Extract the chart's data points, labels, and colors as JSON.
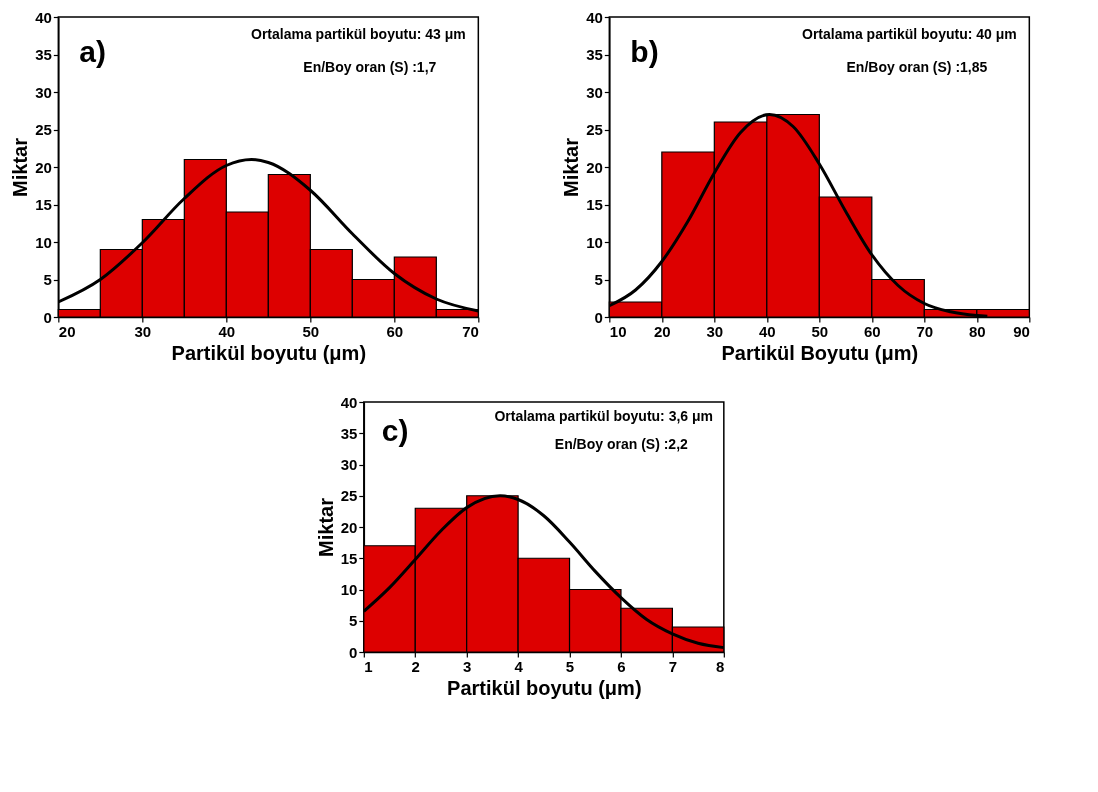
{
  "chart_data": [
    {
      "type": "histogram",
      "xlabel": "Partikül boyutu (μm)",
      "ylabel": "Miktar",
      "annotations": [
        "a)",
        "Ortalama partikül boyutu: 43 μm",
        "En/Boy oran (S) :1,7"
      ],
      "bins": [
        20,
        25,
        30,
        35,
        40,
        45,
        50,
        55,
        60,
        65,
        70
      ],
      "xlim": [
        20,
        70
      ],
      "xticks": [
        20,
        30,
        40,
        50,
        60,
        70
      ],
      "ylim": [
        0,
        40
      ],
      "yticks": [
        0,
        5,
        10,
        15,
        20,
        25,
        30,
        35,
        40
      ],
      "series": [
        {
          "type": "histogram",
          "color": "#dd0000",
          "values": [
            1,
            9,
            13,
            21,
            14,
            19,
            9,
            5,
            8,
            1
          ]
        },
        {
          "type": "line",
          "color": "#000000",
          "x": [
            20,
            25,
            30,
            35,
            40,
            43,
            45,
            50,
            55,
            60,
            65,
            70
          ],
          "values": [
            2.0,
            5.0,
            9.9,
            15.8,
            20.2,
            21,
            20.6,
            16.9,
            11.1,
            5.8,
            2.4,
            0.8
          ]
        }
      ]
    },
    {
      "type": "histogram",
      "xlabel": "Partikül Boyutu (μm)",
      "ylabel": "Miktar",
      "annotations": [
        "b)",
        "Ortalama partikül boyutu: 40 μm",
        "En/Boy oran (S) :1,85"
      ],
      "bins": [
        10,
        20,
        30,
        40,
        50,
        60,
        70,
        80,
        90
      ],
      "xlim": [
        10,
        90
      ],
      "xticks": [
        10,
        20,
        30,
        40,
        50,
        60,
        70,
        80,
        90
      ],
      "ylim": [
        0,
        40
      ],
      "yticks": [
        0,
        5,
        10,
        15,
        20,
        25,
        30,
        35,
        40
      ],
      "series": [
        {
          "type": "histogram",
          "color": "#dd0000",
          "values": [
            2,
            22,
            26,
            27,
            16,
            5,
            1,
            1
          ]
        },
        {
          "type": "line",
          "color": "#000000",
          "x": [
            10,
            15,
            20,
            25,
            30,
            35,
            40.5,
            45,
            50,
            55,
            60,
            65,
            70,
            75,
            80,
            82
          ],
          "values": [
            1.5,
            3.6,
            7.4,
            12.8,
            19.2,
            24.6,
            27,
            25.4,
            20.4,
            14.1,
            8.3,
            4.2,
            1.8,
            0.7,
            0.2,
            0.1
          ]
        }
      ]
    },
    {
      "type": "histogram",
      "xlabel": "Partikül boyutu (μm)",
      "ylabel": "Miktar",
      "annotations": [
        "c)",
        "Ortalama partikül boyutu: 3,6 μm",
        "En/Boy oran (S) :2,2"
      ],
      "bins": [
        1,
        2,
        3,
        4,
        5,
        6,
        7,
        8
      ],
      "xlim": [
        1,
        8
      ],
      "xticks": [
        1,
        2,
        3,
        4,
        5,
        6,
        7,
        8
      ],
      "ylim": [
        0,
        40
      ],
      "yticks": [
        0,
        5,
        10,
        15,
        20,
        25,
        30,
        35,
        40
      ],
      "series": [
        {
          "type": "histogram",
          "color": "#dd0000",
          "values": [
            17,
            23,
            25,
            15,
            10,
            7,
            4
          ]
        },
        {
          "type": "line",
          "color": "#000000",
          "x": [
            1,
            1.5,
            2,
            2.5,
            3,
            3.65,
            4,
            4.5,
            5,
            5.5,
            6,
            6.5,
            7,
            7.5,
            8
          ],
          "values": [
            6.5,
            10.3,
            14.8,
            19.4,
            23.1,
            25,
            24.4,
            21.8,
            17.6,
            12.9,
            8.7,
            5.2,
            2.9,
            1.4,
            0.7
          ]
        }
      ]
    }
  ]
}
